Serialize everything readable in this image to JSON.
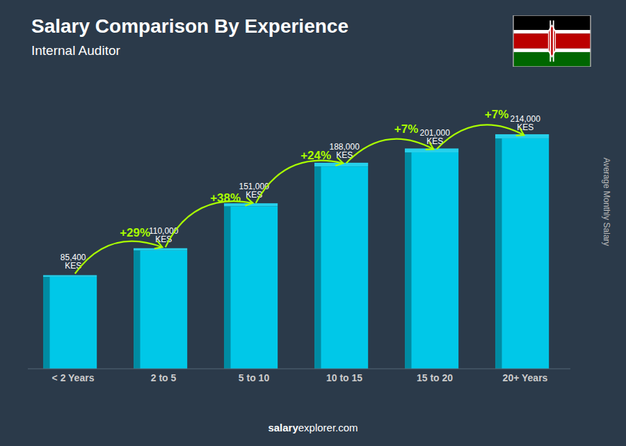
{
  "chart_data": {
    "type": "bar",
    "title": "Salary Comparison By Experience",
    "subtitle": "Internal Auditor",
    "y_label": "Average Monthly Salary",
    "footer": [
      "salary",
      "explorer.com"
    ],
    "categories": [
      "< 2 Years",
      "2 to 5",
      "5 to 10",
      "10 to 15",
      "15 to 20",
      "20+ Years"
    ],
    "values": [
      85400,
      110000,
      151000,
      188000,
      201000,
      214000
    ],
    "value_labels": [
      "85,400 KES",
      "110,000 KES",
      "151,000 KES",
      "188,000 KES",
      "201,000 KES",
      "214,000 KES"
    ],
    "annotations": [
      "+29%",
      "+38%",
      "+24%",
      "+7%",
      "+7%"
    ],
    "color": "#00c8e8",
    "ylim": [
      0,
      265000
    ],
    "data_labels": true,
    "tick_labels": "x",
    "grid": false
  }
}
